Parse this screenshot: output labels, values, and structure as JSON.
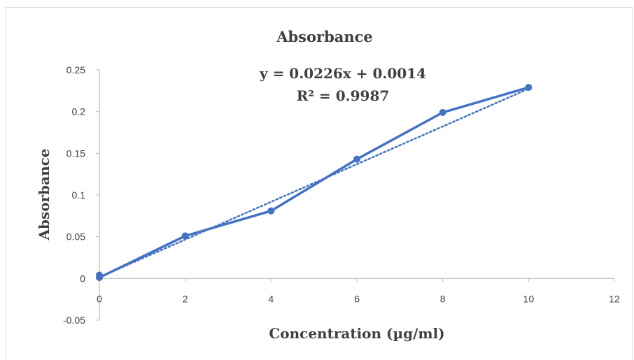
{
  "chart_data": {
    "type": "scatter",
    "title": "Absorbance",
    "xlabel": "Concentration (µg/ml)",
    "ylabel": "Absorbance",
    "xlim": [
      0,
      12
    ],
    "ylim": [
      -0.05,
      0.25
    ],
    "x_ticks": [
      0,
      2,
      4,
      6,
      8,
      10,
      12
    ],
    "y_ticks": [
      -0.05,
      0,
      0.05,
      0.1,
      0.15,
      0.2,
      0.25
    ],
    "x_tick_labels": [
      "0",
      "2",
      "4",
      "6",
      "8",
      "10",
      "12"
    ],
    "y_tick_labels": [
      "-0.05",
      "0",
      "0.05",
      "0.1",
      "0.15",
      "0.2",
      "0.25"
    ],
    "series": [
      {
        "x": [
          0,
          0,
          2,
          4,
          6,
          8,
          10
        ],
        "values": [
          0.004,
          0.001,
          0.051,
          0.081,
          0.143,
          0.199,
          0.229
        ],
        "color": "#4472c4",
        "line": "solid",
        "markers": true
      }
    ],
    "trendline": {
      "kind": "linear",
      "slope": 0.0226,
      "intercept": 0.0014,
      "x_range": [
        0,
        10
      ],
      "style": "dotted",
      "color": "#4472c4"
    },
    "annotations": {
      "equation": "y = 0.0226x + 0.0014",
      "r_squared": "R² = 0.9987"
    },
    "grid": false,
    "legend": "none"
  }
}
